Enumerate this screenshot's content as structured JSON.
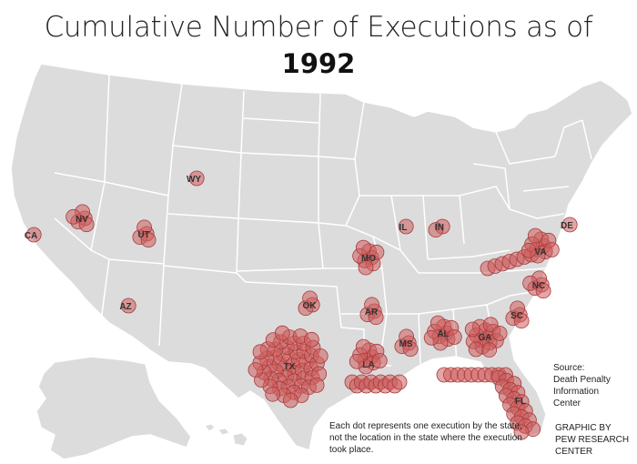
{
  "title": {
    "line1": "Cumulative Number of Executions as of",
    "line2": "1992"
  },
  "colors": {
    "land": "#dcdcdc",
    "border": "#ffffff",
    "dot_fill": "#cd5c5c",
    "dot_stroke": "#a83a3a"
  },
  "states": [
    {
      "code": "CA",
      "executions": 1
    },
    {
      "code": "NV",
      "executions": 5
    },
    {
      "code": "UT",
      "executions": 4
    },
    {
      "code": "AZ",
      "executions": 1
    },
    {
      "code": "WY",
      "executions": 1
    },
    {
      "code": "OK",
      "executions": 3
    },
    {
      "code": "TX",
      "executions": 54
    },
    {
      "code": "MO",
      "executions": 8
    },
    {
      "code": "AR",
      "executions": 4
    },
    {
      "code": "LA",
      "executions": 21
    },
    {
      "code": "MS",
      "executions": 4
    },
    {
      "code": "AL",
      "executions": 10
    },
    {
      "code": "GA",
      "executions": 15
    },
    {
      "code": "FL",
      "executions": 29
    },
    {
      "code": "SC",
      "executions": 4
    },
    {
      "code": "NC",
      "executions": 5
    },
    {
      "code": "VA",
      "executions": 17
    },
    {
      "code": "DE",
      "executions": 1
    },
    {
      "code": "IL",
      "executions": 1
    },
    {
      "code": "IN",
      "executions": 2
    }
  ],
  "source": {
    "label": "Source:",
    "line1": "Death Penalty",
    "line2": "Information",
    "line3": "Center"
  },
  "note": "Each dot represents one execution by the state, not the location in the state where the execution took place.",
  "credit": {
    "line1": "GRAPHIC BY",
    "line2": "PEW RESEARCH",
    "line3": "CENTER"
  }
}
